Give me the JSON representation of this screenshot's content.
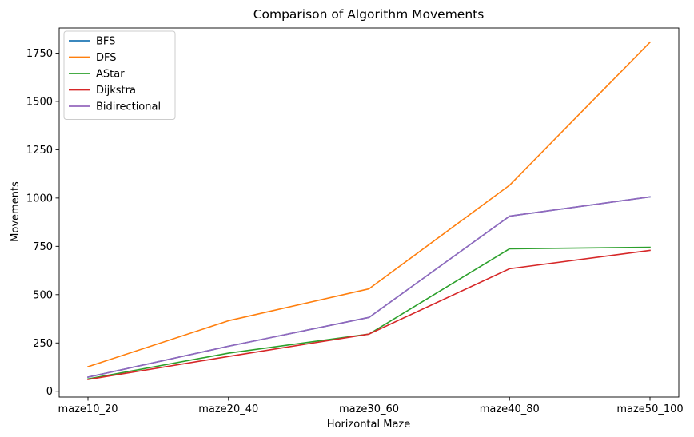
{
  "chart_data": {
    "type": "line",
    "title": "Comparison of Algorithm Movements",
    "xlabel": "Horizontal Maze",
    "ylabel": "Movements",
    "categories": [
      "maze10_20",
      "maze20_40",
      "maze30_60",
      "maze40_80",
      "maze50_100"
    ],
    "ylim": [
      -30,
      1880
    ],
    "yticks": [
      0,
      250,
      500,
      750,
      1000,
      1250,
      1500,
      1750
    ],
    "grid": false,
    "legend_position": "top-left",
    "series": [
      {
        "name": "BFS",
        "color": "#1f77b4",
        "values": [
          73,
          233,
          382,
          906,
          1006
        ]
      },
      {
        "name": "DFS",
        "color": "#ff7f0e",
        "values": [
          127,
          365,
          530,
          1066,
          1806
        ]
      },
      {
        "name": "AStar",
        "color": "#2ca02c",
        "values": [
          64,
          197,
          296,
          737,
          745
        ]
      },
      {
        "name": "Dijkstra",
        "color": "#d62728",
        "values": [
          61,
          180,
          296,
          634,
          729
        ]
      },
      {
        "name": "Bidirectional",
        "color": "#9467bd",
        "values": [
          73,
          233,
          382,
          906,
          1006
        ]
      }
    ]
  }
}
